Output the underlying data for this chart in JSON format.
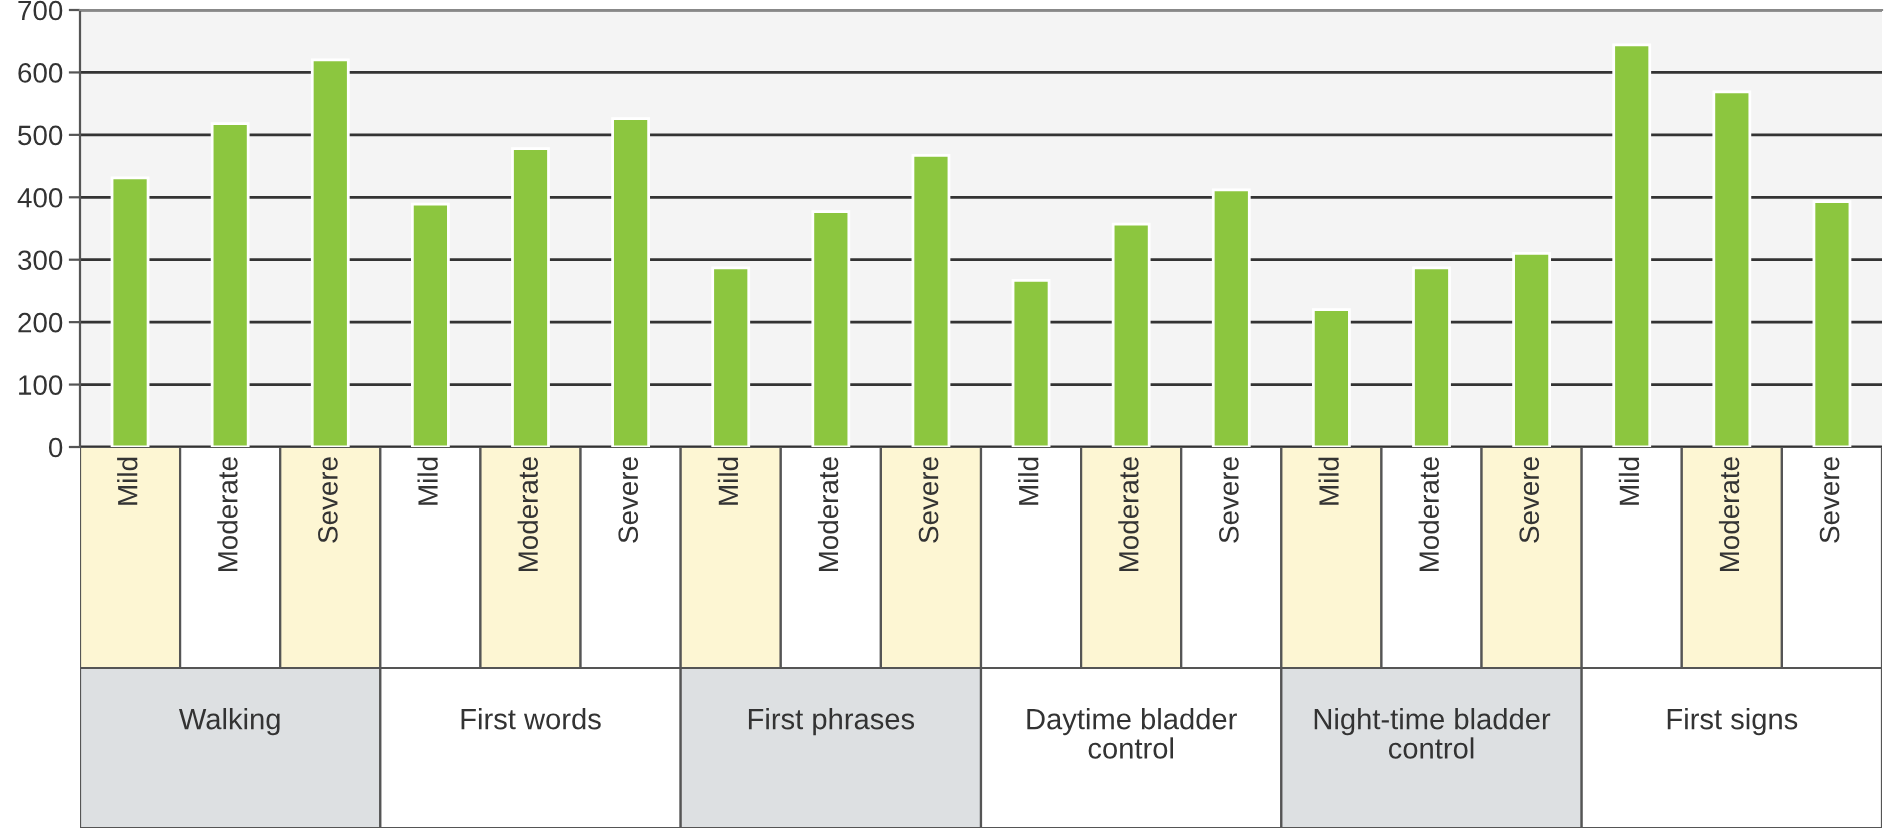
{
  "chart_data": {
    "type": "bar",
    "categories": [
      "Mild",
      "Moderate",
      "Severe",
      "Mild",
      "Moderate",
      "Severe",
      "Mild",
      "Moderate",
      "Severe",
      "Mild",
      "Moderate",
      "Severe",
      "Mild",
      "Moderate",
      "Severe",
      "Mild",
      "Moderate",
      "Severe"
    ],
    "values": [
      431,
      518,
      620,
      389,
      478,
      526,
      287,
      377,
      467,
      267,
      357,
      412,
      220,
      287,
      310,
      644,
      569,
      393
    ],
    "color": "#8cc63f",
    "annotations": [
      "Walking",
      "First words",
      "First phrases",
      "Daytime bladder\ncontrol",
      "Night-time bladder\ncontrol",
      "First signs"
    ],
    "ylim": [
      0,
      700
    ],
    "yticks": [
      0,
      100,
      200,
      300,
      400,
      500,
      600,
      700
    ],
    "grid": "y"
  }
}
